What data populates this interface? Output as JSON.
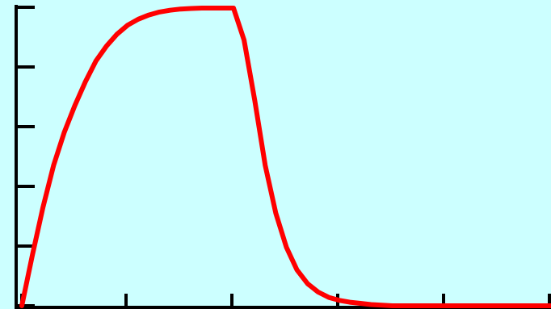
{
  "colors": {
    "background": "#ccffff",
    "axis": "#000000",
    "series": "#ff0000"
  },
  "chart_data": {
    "type": "line",
    "title": "",
    "xlabel": "",
    "ylabel": "",
    "grid": false,
    "legend": "none",
    "xlim": [
      0,
      5
    ],
    "ylim": [
      0,
      5
    ],
    "x_ticks": [
      0,
      1,
      2,
      3,
      4,
      5
    ],
    "y_ticks": [
      0,
      1,
      2,
      3,
      4,
      5
    ],
    "series": [
      {
        "color": "#ff0000",
        "x": [
          0,
          0.1,
          0.2,
          0.3,
          0.4,
          0.5,
          0.6,
          0.7,
          0.8,
          0.9,
          1.0,
          1.1,
          1.2,
          1.3,
          1.4,
          1.5,
          1.6,
          1.7,
          1.8,
          1.9,
          2.0,
          2.1,
          2.2,
          2.3,
          2.4,
          2.5,
          2.6,
          2.7,
          2.8,
          2.9,
          3.0,
          3.1,
          3.2,
          3.3,
          3.4,
          3.5,
          3.6,
          3.7,
          3.8,
          3.9,
          4.0,
          4.5,
          5.0
        ],
        "y": [
          0,
          0.85,
          1.65,
          2.35,
          2.9,
          3.35,
          3.75,
          4.1,
          4.35,
          4.55,
          4.7,
          4.8,
          4.87,
          4.92,
          4.95,
          4.97,
          4.98,
          4.99,
          5.0,
          5.0,
          5.0,
          4.45,
          3.45,
          2.35,
          1.55,
          0.98,
          0.6,
          0.37,
          0.23,
          0.14,
          0.09,
          0.06,
          0.04,
          0.02,
          0.01,
          0.0,
          0.0,
          0.0,
          0.0,
          0.0,
          0.0,
          0.0,
          0.0
        ]
      }
    ]
  }
}
